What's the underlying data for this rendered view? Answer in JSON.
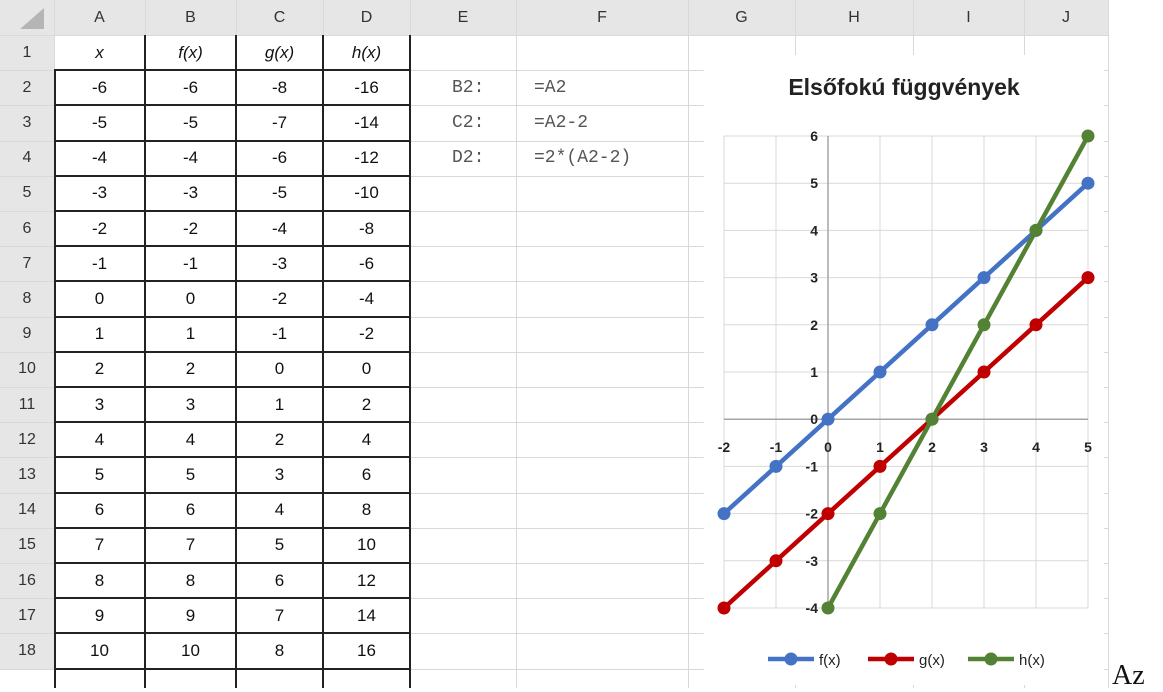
{
  "columns": [
    "A",
    "B",
    "C",
    "D",
    "E",
    "F",
    "G",
    "H",
    "I",
    "J"
  ],
  "rows": [
    "1",
    "2",
    "3",
    "4",
    "5",
    "6",
    "7",
    "8",
    "9",
    "10",
    "11",
    "12",
    "13",
    "14",
    "15",
    "16",
    "17",
    "18"
  ],
  "table_header": [
    "x",
    "f(x)",
    "g(x)",
    "h(x)"
  ],
  "table": [
    [
      "-6",
      "-6",
      "-8",
      "-16"
    ],
    [
      "-5",
      "-5",
      "-7",
      "-14"
    ],
    [
      "-4",
      "-4",
      "-6",
      "-12"
    ],
    [
      "-3",
      "-3",
      "-5",
      "-10"
    ],
    [
      "-2",
      "-2",
      "-4",
      "-8"
    ],
    [
      "-1",
      "-1",
      "-3",
      "-6"
    ],
    [
      "0",
      "0",
      "-2",
      "-4"
    ],
    [
      "1",
      "1",
      "-1",
      "-2"
    ],
    [
      "2",
      "2",
      "0",
      "0"
    ],
    [
      "3",
      "3",
      "1",
      "2"
    ],
    [
      "4",
      "4",
      "2",
      "4"
    ],
    [
      "5",
      "5",
      "3",
      "6"
    ],
    [
      "6",
      "6",
      "4",
      "8"
    ],
    [
      "7",
      "7",
      "5",
      "10"
    ],
    [
      "8",
      "8",
      "6",
      "12"
    ],
    [
      "9",
      "9",
      "7",
      "14"
    ],
    [
      "10",
      "10",
      "8",
      "16"
    ]
  ],
  "formulas": [
    {
      "cell": "B2:",
      "formula": "=A2"
    },
    {
      "cell": "C2:",
      "formula": "=A2-2"
    },
    {
      "cell": "D2:",
      "formula": "=2*(A2-2)"
    }
  ],
  "trailing_text": "Az",
  "chart_data": {
    "type": "line",
    "title": "Elsőfokú függvények",
    "x": [
      -2,
      -1,
      0,
      1,
      2,
      3,
      4,
      5
    ],
    "xlim": [
      -2,
      5
    ],
    "ylim": [
      -4,
      6
    ],
    "x_ticks": [
      "-2",
      "-1",
      "0",
      "1",
      "2",
      "3",
      "4",
      "5"
    ],
    "y_ticks": [
      "-4",
      "-3",
      "-2",
      "-1",
      "0",
      "1",
      "2",
      "3",
      "4",
      "5",
      "6"
    ],
    "grid": true,
    "legend_position": "bottom",
    "series": [
      {
        "name": "f(x)",
        "color": "#4472c4",
        "points": [
          [
            -2,
            -2
          ],
          [
            -1,
            -1
          ],
          [
            0,
            0
          ],
          [
            1,
            1
          ],
          [
            2,
            2
          ],
          [
            3,
            3
          ],
          [
            4,
            4
          ],
          [
            5,
            5
          ]
        ]
      },
      {
        "name": "g(x)",
        "color": "#c00000",
        "points": [
          [
            -2,
            -4
          ],
          [
            -1,
            -3
          ],
          [
            0,
            -2
          ],
          [
            1,
            -1
          ],
          [
            2,
            0
          ],
          [
            3,
            1
          ],
          [
            4,
            2
          ],
          [
            5,
            3
          ]
        ]
      },
      {
        "name": "h(x)",
        "color": "#548235",
        "points": [
          [
            0,
            -4
          ],
          [
            1,
            -2
          ],
          [
            2,
            0
          ],
          [
            3,
            2
          ],
          [
            4,
            4
          ],
          [
            5,
            6
          ]
        ]
      }
    ]
  }
}
